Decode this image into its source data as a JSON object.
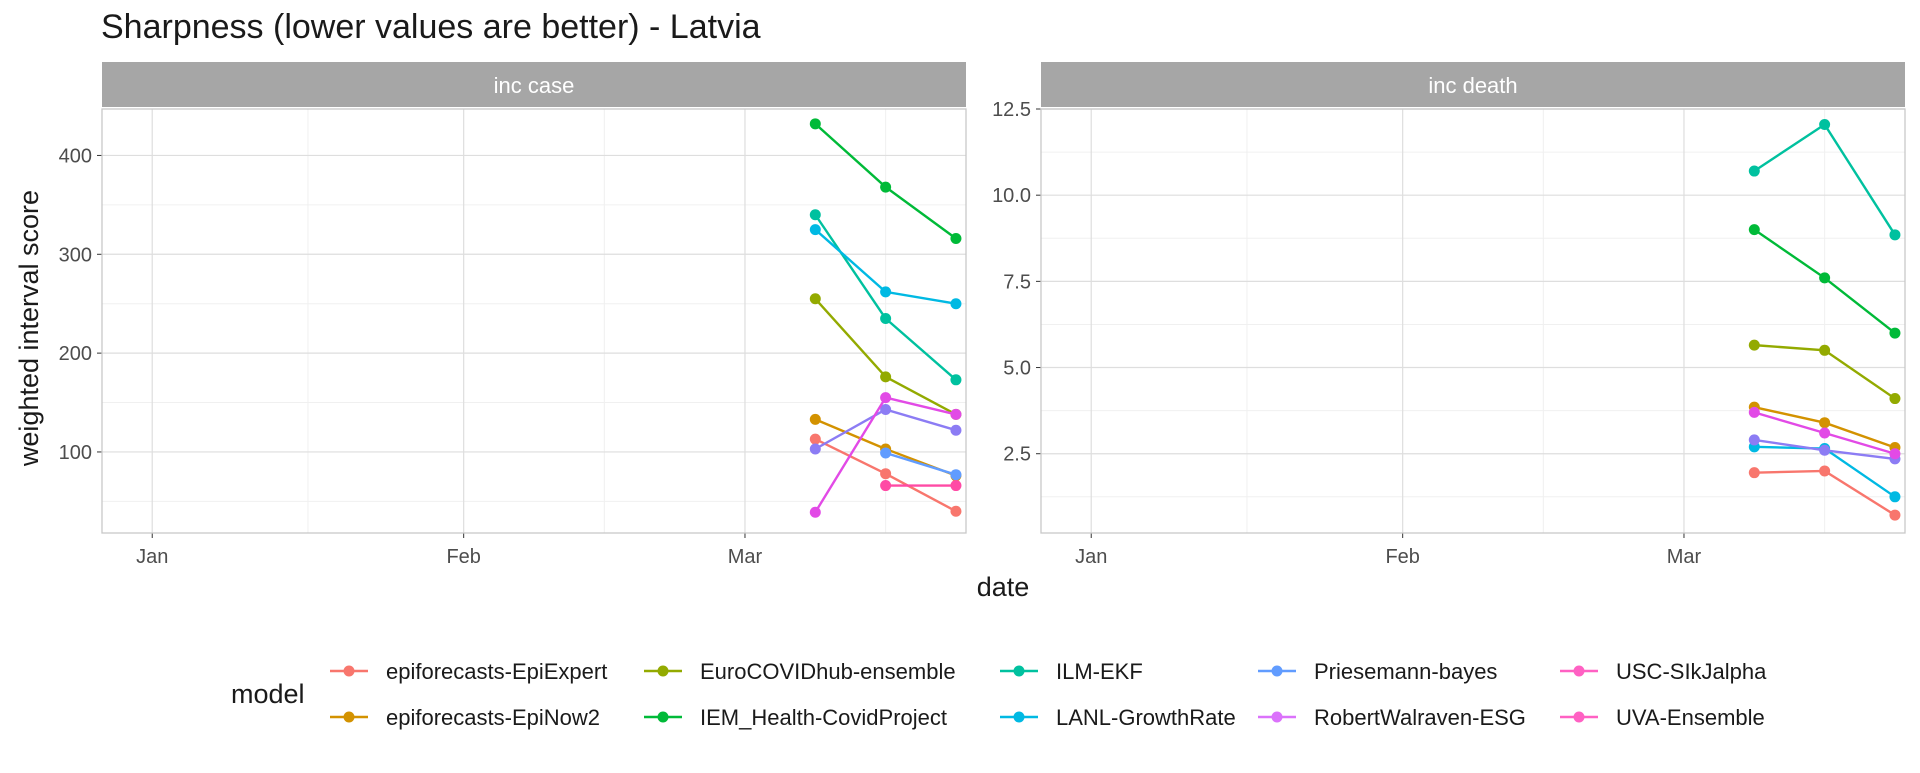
{
  "chart_data": {
    "type": "line",
    "title": "Sharpness (lower values are better) - Latvia",
    "xlabel": "date",
    "ylabel": "weighted interval score",
    "x_ticks": [
      "Jan",
      "Feb",
      "Mar"
    ],
    "x_tick_dates": [
      "2021-01-01",
      "2021-02-01",
      "2021-03-01"
    ],
    "xlim": [
      "2020-12-27",
      "2021-03-23"
    ],
    "grid": true,
    "legend": {
      "title": "model",
      "placement": "bottom",
      "entries": [
        {
          "name": "epiforecasts-EpiExpert",
          "color": "#F8766D"
        },
        {
          "name": "epiforecasts-EpiNow2",
          "color": "#D39200"
        },
        {
          "name": "EuroCOVIDhub-ensemble",
          "color": "#93AA00"
        },
        {
          "name": "IEM_Health-CovidProject",
          "color": "#00BA38"
        },
        {
          "name": "ILM-EKF",
          "color": "#00C19F"
        },
        {
          "name": "LANL-GrowthRate",
          "color": "#00B9E3"
        },
        {
          "name": "Priesemann-bayes",
          "color": "#619CFF"
        },
        {
          "name": "RobertWalraven-ESG",
          "color": "#DB72FB"
        },
        {
          "name": "USC-SIkJalpha",
          "color": "#FF61C3"
        },
        {
          "name": "UVA-Ensemble",
          "color": "#FF61C3"
        }
      ]
    },
    "panels": [
      {
        "strip": "inc case",
        "ylim": [
          18,
          447
        ],
        "y_ticks": [
          "100",
          "200",
          "300",
          "400"
        ],
        "y_tick_values": [
          100,
          200,
          300,
          400
        ],
        "series": [
          {
            "name": "epiforecasts-EpiExpert",
            "color": "#F8766D",
            "x": [
              "2021-03-08",
              "2021-03-15",
              "2021-03-22"
            ],
            "y": [
              113,
              78,
              40
            ]
          },
          {
            "name": "epiforecasts-EpiNow2",
            "color": "#D39200",
            "x": [
              "2021-03-08",
              "2021-03-15",
              "2021-03-22"
            ],
            "y": [
              133,
              103,
              76
            ]
          },
          {
            "name": "EuroCOVIDhub-ensemble",
            "color": "#93AA00",
            "x": [
              "2021-03-08",
              "2021-03-15",
              "2021-03-22"
            ],
            "y": [
              255,
              176,
              138
            ]
          },
          {
            "name": "IEM_Health-CovidProject",
            "color": "#00BA38",
            "x": [
              "2021-03-08",
              "2021-03-15",
              "2021-03-22"
            ],
            "y": [
              432,
              368,
              316
            ]
          },
          {
            "name": "ILM-EKF",
            "color": "#00C19F",
            "x": [
              "2021-03-08",
              "2021-03-15",
              "2021-03-22"
            ],
            "y": [
              340,
              235,
              173
            ]
          },
          {
            "name": "LANL-GrowthRate",
            "color": "#00B9E3",
            "x": [
              "2021-03-08",
              "2021-03-15",
              "2021-03-22"
            ],
            "y": [
              325,
              262,
              250
            ]
          },
          {
            "name": "Priesemann-bayes",
            "color": "#619CFF",
            "x": [
              "2021-03-15",
              "2021-03-22"
            ],
            "y": [
              99,
              77
            ]
          },
          {
            "name": "RobertWalraven-ESG",
            "color": "#8C7CF4",
            "x": [
              "2021-03-08",
              "2021-03-15",
              "2021-03-22"
            ],
            "y": [
              103,
              143,
              122
            ]
          },
          {
            "name": "USC-SIkJalpha",
            "color": "#E24AE6",
            "x": [
              "2021-03-08",
              "2021-03-15",
              "2021-03-22"
            ],
            "y": [
              39,
              155,
              138
            ]
          },
          {
            "name": "UVA-Ensemble",
            "color": "#FF4AA5",
            "x": [
              "2021-03-15",
              "2021-03-22"
            ],
            "y": [
              66,
              66
            ]
          }
        ]
      },
      {
        "strip": "inc death",
        "ylim": [
          0.2,
          12.5
        ],
        "y_ticks": [
          "2.5",
          "5.0",
          "7.5",
          "10.0",
          "12.5"
        ],
        "y_tick_values": [
          2.5,
          5.0,
          7.5,
          10.0,
          12.5
        ],
        "series": [
          {
            "name": "epiforecasts-EpiExpert",
            "color": "#F8766D",
            "x": [
              "2021-03-08",
              "2021-03-15",
              "2021-03-22"
            ],
            "y": [
              1.95,
              2.0,
              0.72
            ]
          },
          {
            "name": "epiforecasts-EpiNow2",
            "color": "#D39200",
            "x": [
              "2021-03-08",
              "2021-03-15",
              "2021-03-22"
            ],
            "y": [
              3.85,
              3.4,
              2.68
            ]
          },
          {
            "name": "EuroCOVIDhub-ensemble",
            "color": "#93AA00",
            "x": [
              "2021-03-08",
              "2021-03-15",
              "2021-03-22"
            ],
            "y": [
              5.65,
              5.5,
              4.1
            ]
          },
          {
            "name": "IEM_Health-CovidProject",
            "color": "#00BA38",
            "x": [
              "2021-03-08",
              "2021-03-15",
              "2021-03-22"
            ],
            "y": [
              9.0,
              7.6,
              6.0
            ]
          },
          {
            "name": "ILM-EKF",
            "color": "#00C19F",
            "x": [
              "2021-03-08",
              "2021-03-15",
              "2021-03-22"
            ],
            "y": [
              10.7,
              12.05,
              8.85
            ]
          },
          {
            "name": "LANL-GrowthRate",
            "color": "#00B9E3",
            "x": [
              "2021-03-08",
              "2021-03-15",
              "2021-03-22"
            ],
            "y": [
              2.7,
              2.65,
              1.25
            ]
          },
          {
            "name": "RobertWalraven-ESG",
            "color": "#8C7CF4",
            "x": [
              "2021-03-08",
              "2021-03-15",
              "2021-03-22"
            ],
            "y": [
              2.9,
              2.6,
              2.35
            ]
          },
          {
            "name": "USC-SIkJalpha",
            "color": "#E24AE6",
            "x": [
              "2021-03-08",
              "2021-03-15",
              "2021-03-22"
            ],
            "y": [
              3.7,
              3.1,
              2.5
            ]
          }
        ]
      }
    ]
  }
}
